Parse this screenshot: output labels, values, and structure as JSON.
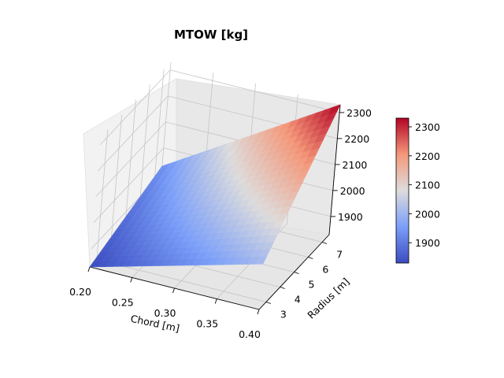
{
  "chart_data": {
    "type": "surface3d",
    "title": "MTOW [kg]",
    "xlabel": "Chord [m]",
    "ylabel": "Radius [m]",
    "zlabel": "",
    "x_range": [
      0.2,
      0.4
    ],
    "y_range": [
      2.5,
      7.5
    ],
    "z_range": [
      1830,
      2330
    ],
    "x_ticks": [
      "0.20",
      "0.25",
      "0.30",
      "0.35",
      "0.40"
    ],
    "y_ticks": [
      "3",
      "4",
      "5",
      "6",
      "7"
    ],
    "z_ticks": [
      "1900",
      "2000",
      "2100",
      "2200",
      "2300"
    ],
    "grid": true,
    "colormap": "coolwarm",
    "colorbar": {
      "ticks": [
        "1900",
        "2000",
        "2100",
        "2200",
        "2300"
      ],
      "range": [
        1830,
        2330
      ]
    },
    "surface": {
      "x": [
        0.2,
        0.4
      ],
      "y": [
        2.5,
        7.5
      ],
      "z": [
        [
          1830,
          2005
        ],
        [
          1930,
          2330
        ]
      ]
    }
  }
}
